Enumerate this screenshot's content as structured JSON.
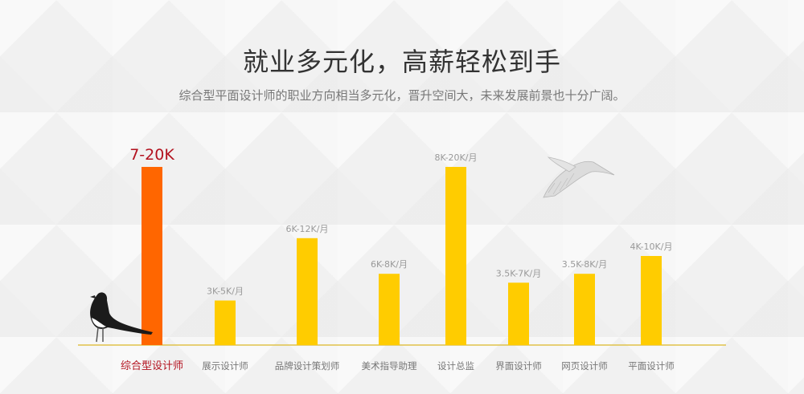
{
  "header": {
    "title": "就业多元化，高薪轻松到手",
    "subtitle": "综合型平面设计师的职业方向相当多元化，晋升空间大，未来发展前景也十分广阔。"
  },
  "colors": {
    "highlight_bar": "#ff6600",
    "bar": "#ffcc00",
    "highlight_text": "#b3121f",
    "label_text": "#777777",
    "axis": "#e0c24a"
  },
  "chart_data": {
    "type": "bar",
    "categories": [
      "综合型设计师",
      "展示设计师",
      "品牌设计策划师",
      "美术指导助理",
      "设计总监",
      "界面设计师",
      "网页设计师",
      "平面设计师"
    ],
    "values": [
      20,
      5,
      12,
      8,
      20,
      7,
      8,
      10
    ],
    "value_labels": [
      "7-20K",
      "3K-5K/月",
      "6K-12K/月",
      "6K-8K/月",
      "8K-20K/月",
      "3.5K-7K/月",
      "3.5K-8K/月",
      "4K-10K/月"
    ],
    "highlight_index": 0,
    "ylim": [
      0,
      20
    ],
    "grid": false,
    "legend": "none"
  }
}
